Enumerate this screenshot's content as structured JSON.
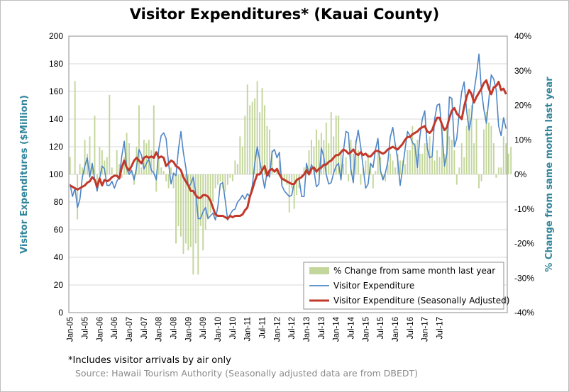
{
  "chart_data": {
    "type": "bar+line",
    "title": "Visitor Expenditures* (Kauai County)",
    "ylabel": "Visitor Expenditures ($Million)",
    "y2label": "% Change from same month last year",
    "ylim": [
      0,
      200
    ],
    "y2lim": [
      -40,
      40
    ],
    "yticks": [
      "0",
      "20",
      "40",
      "60",
      "80",
      "100",
      "120",
      "140",
      "160",
      "180",
      "200"
    ],
    "y2ticks": [
      "-40%",
      "-30%",
      "-20%",
      "-10%",
      "0%",
      "10%",
      "20%",
      "30%",
      "40%"
    ],
    "xticks": [
      "Jan-05",
      "Jul-05",
      "Jan-06",
      "Jul-06",
      "Jan-07",
      "Jul-07",
      "Jan-08",
      "Jul-08",
      "Jan-09",
      "Jul-09",
      "Jan-10",
      "Jul-10",
      "Jan-11",
      "Jul-11",
      "Jan-12",
      "Jul-12",
      "Jan-13",
      "Jul-13",
      "Jan-14",
      "Jul-14",
      "Jan-15",
      "Jul-15",
      "Jan-16",
      "Jul-16",
      "Jan-17",
      "Jul-17"
    ],
    "grid": true,
    "legend_position": "bottom-right",
    "colors": {
      "bars": "#c3d69b",
      "raw": "#4f86c6",
      "sa": "#c0392b"
    },
    "series": [
      {
        "name": "% Change from same month last year",
        "type": "bar",
        "axis": "right",
        "values": [
          5,
          0,
          27,
          -13,
          3,
          2,
          10,
          6,
          11,
          3,
          17,
          -5,
          8,
          7,
          4,
          5,
          23,
          2,
          0,
          7,
          3,
          -1,
          5,
          12,
          9,
          1,
          -3,
          8,
          20,
          2,
          10,
          9,
          10,
          7,
          20,
          -5,
          5,
          2,
          1,
          -2,
          -4,
          2,
          -4,
          -20,
          -15,
          -18,
          -23,
          -20,
          -22,
          -21,
          -29,
          -20,
          -29,
          -15,
          -22,
          -16,
          -13,
          -11,
          -8,
          -4,
          -3,
          -2,
          -4,
          -5,
          -3,
          -1,
          -2,
          4,
          3,
          11,
          8,
          17,
          26,
          20,
          21,
          22,
          27,
          18,
          25,
          20,
          14,
          13,
          7,
          0,
          1,
          4,
          -3,
          -2,
          -3,
          -11,
          -4,
          -10,
          -6,
          -4,
          -1,
          2,
          3,
          7,
          10,
          8,
          13,
          10,
          12,
          10,
          15,
          9,
          18,
          11,
          17,
          17,
          7,
          3,
          5,
          -2,
          10,
          6,
          10,
          7,
          -3,
          2,
          4,
          6,
          3,
          -4,
          1,
          7,
          5,
          -1,
          -2,
          3,
          6,
          4,
          2,
          6,
          4,
          4,
          3,
          7,
          7,
          14,
          9,
          10,
          6,
          6,
          9,
          9,
          11,
          5,
          4,
          7,
          5,
          14,
          6,
          13,
          11,
          10,
          7,
          -3,
          2,
          9,
          5,
          14,
          19,
          20,
          9,
          16,
          -4,
          -2,
          13,
          18,
          15,
          14,
          9,
          -1,
          2,
          2,
          11,
          9,
          6,
          8
        ]
      },
      {
        "name": "Visitor Expenditure",
        "type": "line",
        "axis": "left",
        "values": [
          93,
          84,
          90,
          76,
          82,
          98,
          106,
          112,
          98,
          108,
          96,
          88,
          97,
          106,
          104,
          92,
          92,
          95,
          90,
          95,
          98,
          113,
          124,
          104,
          100,
          103,
          96,
          105,
          118,
          114,
          104,
          108,
          111,
          103,
          101,
          96,
          118,
          128,
          130,
          126,
          108,
          93,
          101,
          99,
          118,
          131,
          116,
          105,
          91,
          93,
          98,
          87,
          68,
          68,
          73,
          76,
          68,
          70,
          72,
          67,
          77,
          93,
          94,
          81,
          67,
          71,
          74,
          75,
          80,
          82,
          85,
          82,
          86,
          84,
          92,
          108,
          120,
          110,
          100,
          90,
          102,
          98,
          116,
          118,
          112,
          116,
          92,
          88,
          86,
          84,
          85,
          94,
          96,
          97,
          84,
          84,
          108,
          100,
          107,
          103,
          91,
          93,
          119,
          113,
          100,
          93,
          94,
          101,
          106,
          108,
          96,
          117,
          131,
          130,
          104,
          94,
          122,
          132,
          120,
          105,
          90,
          93,
          108,
          105,
          118,
          126,
          103,
          96,
          101,
          109,
          127,
          134,
          122,
          111,
          92,
          104,
          118,
          131,
          128,
          123,
          121,
          105,
          127,
          140,
          146,
          119,
          112,
          113,
          140,
          150,
          151,
          130,
          106,
          115,
          156,
          155,
          120,
          126,
          145,
          160,
          167,
          146,
          132,
          142,
          160,
          172,
          187,
          161,
          147,
          137,
          154,
          172,
          169,
          161,
          135,
          128,
          141,
          133
        ]
      },
      {
        "name": "Visitor Expenditure (Seasonally Adjusted)",
        "type": "line",
        "axis": "left",
        "values": [
          92,
          91,
          90,
          89,
          90,
          91,
          92,
          94,
          95,
          98,
          96,
          91,
          97,
          92,
          96,
          95,
          96,
          98,
          99,
          99,
          97,
          105,
          110,
          105,
          103,
          106,
          110,
          112,
          110,
          108,
          112,
          113,
          112,
          113,
          112,
          116,
          112,
          113,
          112,
          106,
          108,
          110,
          109,
          106,
          105,
          103,
          98,
          95,
          92,
          88,
          88,
          85,
          83,
          83,
          85,
          85,
          84,
          81,
          76,
          71,
          70,
          70,
          70,
          69,
          68,
          70,
          69,
          70,
          70,
          70,
          71,
          74,
          76,
          84,
          89,
          95,
          100,
          100,
          103,
          106,
          99,
          103,
          104,
          102,
          104,
          100,
          97,
          96,
          95,
          94,
          93,
          93,
          96,
          97,
          98,
          100,
          103,
          100,
          104,
          105,
          102,
          104,
          105,
          107,
          107,
          109,
          110,
          112,
          114,
          114,
          116,
          118,
          117,
          115,
          116,
          118,
          115,
          114,
          116,
          114,
          115,
          113,
          113,
          115,
          117,
          117,
          116,
          115,
          116,
          118,
          119,
          120,
          119,
          118,
          120,
          122,
          125,
          127,
          127,
          129,
          130,
          131,
          133,
          134,
          135,
          131,
          130,
          132,
          137,
          141,
          141,
          136,
          132,
          134,
          141,
          146,
          148,
          144,
          142,
          140,
          149,
          156,
          161,
          158,
          152,
          156,
          159,
          162,
          166,
          168,
          162,
          158,
          163,
          164,
          167,
          161,
          162,
          158
        ]
      }
    ]
  },
  "notes": {
    "footnote": "*Includes visitor arrivals by air only",
    "source": "Source: Hawaii Tourism Authority (Seasonally adjusted data are from DBEDT)"
  }
}
